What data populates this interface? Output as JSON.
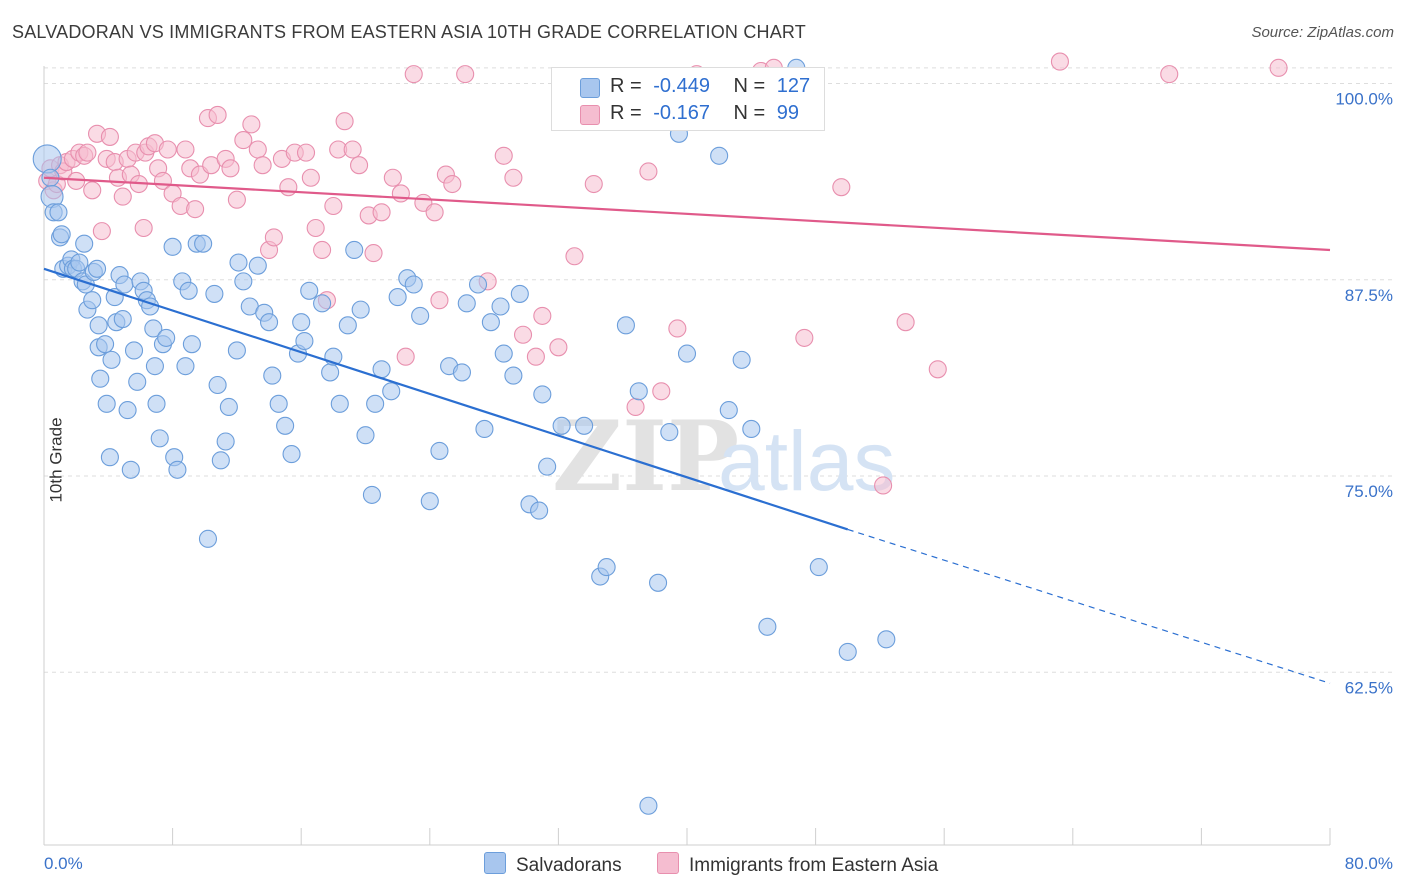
{
  "title": "SALVADORAN VS IMMIGRANTS FROM EASTERN ASIA 10TH GRADE CORRELATION CHART",
  "source": "Source: ZipAtlas.com",
  "watermark": {
    "zip": "ZIP",
    "atlas": "atlas"
  },
  "legend": {
    "series1": {
      "r_label": "R =",
      "r_value": "-0.449",
      "n_label": "N =",
      "n_value": "127"
    },
    "series2": {
      "r_label": "R =",
      "r_value": "-0.167",
      "n_label": "N =",
      "n_value": "99"
    }
  },
  "bottom_legend": {
    "series1": "Salvadorans",
    "series2": "Immigrants from Eastern Asia"
  },
  "colors": {
    "blue_fill": "#a8c6ee",
    "blue_stroke": "#6c9edb",
    "blue_line": "#2b6fd1",
    "pink_fill": "#f5bdd0",
    "pink_stroke": "#e88fae",
    "pink_line": "#e05a8a",
    "tick_text": "#3a72c9",
    "grid": "#dddddd"
  },
  "chart_data": {
    "type": "scatter",
    "title": "SALVADORAN VS IMMIGRANTS FROM EASTERN ASIA 10TH GRADE CORRELATION CHART",
    "xlabel": "",
    "ylabel": "10th Grade",
    "xlim": [
      0,
      80
    ],
    "ylim": [
      51.5,
      101.5
    ],
    "x_tick_labels": [
      "0.0%",
      "80.0%"
    ],
    "y_ticks": [
      62.5,
      75.0,
      87.5,
      100.0
    ],
    "y_tick_labels": [
      "62.5%",
      "75.0%",
      "87.5%",
      "100.0%"
    ],
    "grid": true,
    "legend_position": "top-center",
    "series": [
      {
        "name": "Salvadorans",
        "r": -0.449,
        "n": 127,
        "trend": {
          "x0": 0,
          "y0": 88.2,
          "x1": 50,
          "y1": 71.6,
          "dashed_to_x": 80,
          "dashed_to_y": 61.8
        },
        "points": [
          [
            0.2,
            95.2
          ],
          [
            0.4,
            94
          ],
          [
            0.5,
            92.8
          ],
          [
            0.6,
            91.8
          ],
          [
            0.9,
            91.8
          ],
          [
            1.0,
            90.2
          ],
          [
            1.1,
            90.4
          ],
          [
            1.2,
            88.2
          ],
          [
            1.5,
            88.4
          ],
          [
            1.7,
            88.8
          ],
          [
            1.8,
            88.2
          ],
          [
            2.0,
            88.2
          ],
          [
            2.2,
            88.6
          ],
          [
            2.4,
            87.4
          ],
          [
            2.5,
            89.8
          ],
          [
            2.6,
            87.2
          ],
          [
            2.7,
            85.6
          ],
          [
            3.0,
            86.2
          ],
          [
            3.1,
            88.0
          ],
          [
            3.3,
            88.2
          ],
          [
            3.4,
            84.6
          ],
          [
            3.4,
            83.2
          ],
          [
            3.5,
            81.2
          ],
          [
            3.8,
            83.4
          ],
          [
            3.9,
            79.6
          ],
          [
            4.1,
            76.2
          ],
          [
            4.2,
            82.4
          ],
          [
            4.4,
            86.4
          ],
          [
            4.5,
            84.8
          ],
          [
            4.7,
            87.8
          ],
          [
            4.9,
            85.0
          ],
          [
            5.0,
            87.2
          ],
          [
            5.2,
            79.2
          ],
          [
            5.4,
            75.4
          ],
          [
            5.6,
            83.0
          ],
          [
            5.8,
            81.0
          ],
          [
            6.0,
            87.4
          ],
          [
            6.2,
            86.8
          ],
          [
            6.4,
            86.2
          ],
          [
            6.6,
            85.8
          ],
          [
            6.8,
            84.4
          ],
          [
            6.9,
            82.0
          ],
          [
            7.0,
            79.6
          ],
          [
            7.2,
            77.4
          ],
          [
            7.4,
            83.4
          ],
          [
            7.6,
            83.8
          ],
          [
            8.0,
            89.6
          ],
          [
            8.1,
            76.2
          ],
          [
            8.3,
            75.4
          ],
          [
            8.6,
            87.4
          ],
          [
            8.8,
            82.0
          ],
          [
            9.0,
            86.8
          ],
          [
            9.2,
            83.4
          ],
          [
            9.5,
            89.8
          ],
          [
            9.9,
            89.8
          ],
          [
            10.2,
            71.0
          ],
          [
            10.6,
            86.6
          ],
          [
            10.8,
            80.8
          ],
          [
            11.0,
            76.0
          ],
          [
            11.3,
            77.2
          ],
          [
            11.5,
            79.4
          ],
          [
            12.0,
            83.0
          ],
          [
            12.1,
            88.6
          ],
          [
            12.4,
            87.4
          ],
          [
            12.8,
            85.8
          ],
          [
            13.3,
            88.4
          ],
          [
            13.7,
            85.4
          ],
          [
            14.0,
            84.8
          ],
          [
            14.2,
            81.4
          ],
          [
            14.6,
            79.6
          ],
          [
            15.0,
            78.2
          ],
          [
            15.4,
            76.4
          ],
          [
            15.8,
            82.8
          ],
          [
            16.0,
            84.8
          ],
          [
            16.2,
            83.6
          ],
          [
            16.5,
            86.8
          ],
          [
            17.3,
            86.0
          ],
          [
            17.8,
            81.6
          ],
          [
            18.0,
            82.6
          ],
          [
            18.4,
            79.6
          ],
          [
            18.9,
            84.6
          ],
          [
            19.3,
            89.4
          ],
          [
            19.7,
            85.6
          ],
          [
            20.0,
            77.6
          ],
          [
            20.4,
            73.8
          ],
          [
            20.6,
            79.6
          ],
          [
            21.0,
            81.8
          ],
          [
            21.6,
            80.4
          ],
          [
            22.0,
            86.4
          ],
          [
            22.6,
            87.6
          ],
          [
            23.0,
            87.2
          ],
          [
            23.4,
            85.2
          ],
          [
            24.0,
            73.4
          ],
          [
            24.6,
            76.6
          ],
          [
            25.2,
            82.0
          ],
          [
            26.0,
            81.6
          ],
          [
            26.3,
            86.0
          ],
          [
            27.0,
            87.2
          ],
          [
            27.4,
            78.0
          ],
          [
            27.8,
            84.8
          ],
          [
            28.4,
            85.8
          ],
          [
            28.6,
            82.8
          ],
          [
            29.2,
            81.4
          ],
          [
            29.6,
            86.6
          ],
          [
            30.2,
            73.2
          ],
          [
            30.8,
            72.8
          ],
          [
            31.0,
            80.2
          ],
          [
            31.3,
            75.6
          ],
          [
            32.2,
            78.2
          ],
          [
            33.6,
            78.2
          ],
          [
            34.6,
            68.6
          ],
          [
            35.0,
            69.2
          ],
          [
            36.2,
            84.6
          ],
          [
            37.0,
            80.4
          ],
          [
            37.6,
            54.0
          ],
          [
            38.2,
            68.2
          ],
          [
            38.9,
            77.8
          ],
          [
            40.0,
            82.8
          ],
          [
            39.5,
            96.8
          ],
          [
            42.0,
            95.4
          ],
          [
            42.6,
            79.2
          ],
          [
            43.4,
            82.4
          ],
          [
            44.0,
            78.0
          ],
          [
            45.0,
            65.4
          ],
          [
            46.8,
            101.0
          ],
          [
            48.2,
            69.2
          ],
          [
            50.0,
            63.8
          ],
          [
            52.4,
            64.6
          ]
        ]
      },
      {
        "name": "Immigrants from Eastern Asia",
        "r": -0.167,
        "n": 99,
        "trend": {
          "x0": 0,
          "y0": 94.0,
          "x1": 80,
          "y1": 89.4
        },
        "points": [
          [
            0.2,
            93.8
          ],
          [
            0.4,
            94.6
          ],
          [
            0.6,
            93.2
          ],
          [
            0.8,
            93.6
          ],
          [
            1.0,
            94.8
          ],
          [
            1.2,
            94.4
          ],
          [
            1.4,
            95.0
          ],
          [
            1.8,
            95.2
          ],
          [
            2.0,
            93.8
          ],
          [
            2.2,
            95.6
          ],
          [
            2.5,
            95.4
          ],
          [
            2.7,
            95.6
          ],
          [
            3.0,
            93.2
          ],
          [
            3.3,
            96.8
          ],
          [
            3.6,
            90.6
          ],
          [
            3.9,
            95.2
          ],
          [
            4.1,
            96.6
          ],
          [
            4.4,
            95.0
          ],
          [
            4.6,
            94.0
          ],
          [
            4.9,
            92.8
          ],
          [
            5.2,
            95.2
          ],
          [
            5.4,
            94.2
          ],
          [
            5.7,
            95.6
          ],
          [
            5.9,
            93.6
          ],
          [
            6.2,
            90.8
          ],
          [
            6.3,
            95.6
          ],
          [
            6.5,
            96.0
          ],
          [
            6.9,
            96.2
          ],
          [
            7.1,
            94.6
          ],
          [
            7.4,
            93.8
          ],
          [
            7.7,
            95.8
          ],
          [
            8.0,
            93.0
          ],
          [
            8.5,
            92.2
          ],
          [
            8.8,
            95.8
          ],
          [
            9.1,
            94.6
          ],
          [
            9.4,
            92.0
          ],
          [
            9.7,
            94.2
          ],
          [
            10.2,
            97.8
          ],
          [
            10.4,
            94.8
          ],
          [
            10.8,
            98.0
          ],
          [
            11.3,
            95.2
          ],
          [
            11.6,
            94.6
          ],
          [
            12.0,
            92.6
          ],
          [
            12.4,
            96.4
          ],
          [
            12.9,
            97.4
          ],
          [
            13.3,
            95.8
          ],
          [
            13.6,
            94.8
          ],
          [
            14.0,
            89.4
          ],
          [
            14.3,
            90.2
          ],
          [
            14.8,
            95.2
          ],
          [
            15.2,
            93.4
          ],
          [
            15.6,
            95.6
          ],
          [
            16.3,
            95.6
          ],
          [
            16.6,
            94.0
          ],
          [
            16.9,
            90.8
          ],
          [
            17.3,
            89.4
          ],
          [
            17.6,
            86.2
          ],
          [
            18.0,
            92.2
          ],
          [
            18.3,
            95.8
          ],
          [
            18.7,
            97.6
          ],
          [
            19.2,
            95.8
          ],
          [
            19.6,
            94.8
          ],
          [
            20.2,
            91.6
          ],
          [
            20.5,
            89.2
          ],
          [
            21.0,
            91.8
          ],
          [
            21.7,
            94.0
          ],
          [
            22.2,
            93.0
          ],
          [
            22.5,
            82.6
          ],
          [
            23.0,
            100.6
          ],
          [
            23.6,
            92.4
          ],
          [
            24.3,
            91.8
          ],
          [
            24.6,
            86.2
          ],
          [
            25.0,
            94.2
          ],
          [
            25.4,
            93.6
          ],
          [
            26.2,
            100.6
          ],
          [
            27.6,
            87.4
          ],
          [
            28.6,
            95.4
          ],
          [
            29.2,
            94.0
          ],
          [
            29.8,
            84.0
          ],
          [
            30.6,
            82.6
          ],
          [
            31.0,
            85.2
          ],
          [
            32.0,
            83.2
          ],
          [
            33.0,
            89.0
          ],
          [
            34.2,
            93.6
          ],
          [
            36.8,
            79.4
          ],
          [
            37.6,
            94.4
          ],
          [
            38.4,
            80.4
          ],
          [
            39.4,
            84.4
          ],
          [
            40.6,
            100.6
          ],
          [
            42.6,
            100.0
          ],
          [
            44.6,
            100.8
          ],
          [
            45.4,
            101.0
          ],
          [
            47.3,
            83.8
          ],
          [
            49.6,
            93.4
          ],
          [
            52.2,
            74.4
          ],
          [
            53.6,
            84.8
          ],
          [
            55.6,
            81.8
          ],
          [
            63.2,
            101.4
          ],
          [
            70.0,
            100.6
          ],
          [
            76.8,
            101.0
          ]
        ]
      }
    ]
  }
}
